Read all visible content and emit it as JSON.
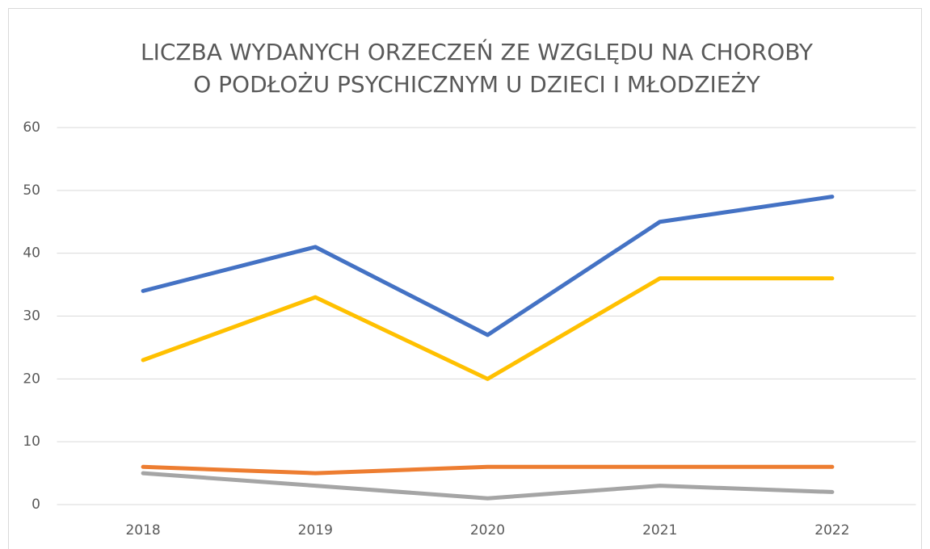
{
  "chart_data": {
    "type": "line",
    "title": [
      "LICZBA WYDANYCH ORZECZEŃ ZE WZGLĘDU NA CHOROBY",
      "O PODŁOŻU PSYCHICZNYM  U DZIECI I MŁODZIEŻY"
    ],
    "categories": [
      "2018",
      "2019",
      "2020",
      "2021",
      "2022"
    ],
    "series": [
      {
        "color": "#4472c4",
        "values": [
          34,
          41,
          27,
          45,
          49
        ]
      },
      {
        "color": "#ed7d31",
        "values": [
          6,
          5,
          6,
          6,
          6
        ]
      },
      {
        "color": "#a5a5a5",
        "values": [
          5,
          3,
          1,
          3,
          2
        ]
      },
      {
        "color": "#ffc000",
        "values": [
          23,
          33,
          20,
          36,
          36
        ]
      }
    ],
    "ylim": [
      0,
      60
    ],
    "yticks": [
      0,
      10,
      20,
      30,
      40,
      50,
      60
    ],
    "grid": true
  }
}
